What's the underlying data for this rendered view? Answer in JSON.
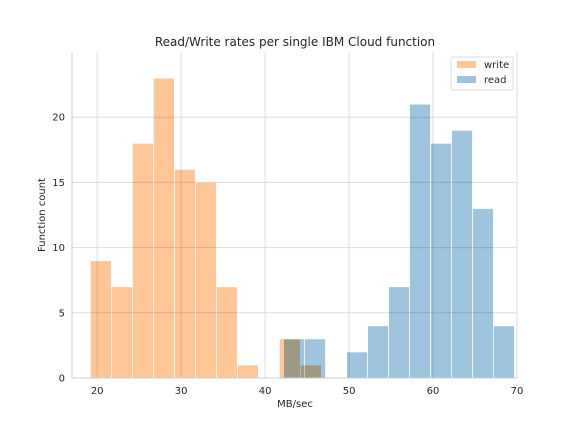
{
  "chart_data": {
    "type": "histogram",
    "title": "Read/Write rates per single IBM Cloud function",
    "xlabel": "MB/sec",
    "ylabel": "Function count",
    "xlim": [
      17,
      70
    ],
    "ylim": [
      0,
      25
    ],
    "xticks": [
      20,
      30,
      40,
      50,
      60,
      70
    ],
    "yticks": [
      0,
      5,
      10,
      15,
      20
    ],
    "grid": true,
    "legend_position": "top-right",
    "series": [
      {
        "name": "write",
        "color": "#ffc797",
        "bin_width": 2.5,
        "bins": [
          {
            "x0": 19.2,
            "count": 9
          },
          {
            "x0": 21.7,
            "count": 7
          },
          {
            "x0": 24.2,
            "count": 18
          },
          {
            "x0": 26.7,
            "count": 23
          },
          {
            "x0": 29.2,
            "count": 16
          },
          {
            "x0": 31.7,
            "count": 15
          },
          {
            "x0": 34.2,
            "count": 7
          },
          {
            "x0": 36.7,
            "count": 1
          },
          {
            "x0": 39.2,
            "count": 0
          },
          {
            "x0": 41.7,
            "count": 3
          },
          {
            "x0": 44.2,
            "count": 1
          }
        ]
      },
      {
        "name": "read",
        "color": "#9ec4de",
        "bin_width": 2.5,
        "bins": [
          {
            "x0": 42.2,
            "count": 3
          },
          {
            "x0": 44.7,
            "count": 3
          },
          {
            "x0": 47.2,
            "count": 0
          },
          {
            "x0": 49.7,
            "count": 2
          },
          {
            "x0": 52.2,
            "count": 4
          },
          {
            "x0": 54.7,
            "count": 7
          },
          {
            "x0": 57.2,
            "count": 21
          },
          {
            "x0": 59.7,
            "count": 18
          },
          {
            "x0": 62.2,
            "count": 19
          },
          {
            "x0": 64.7,
            "count": 13
          },
          {
            "x0": 67.2,
            "count": 4
          }
        ]
      }
    ]
  }
}
